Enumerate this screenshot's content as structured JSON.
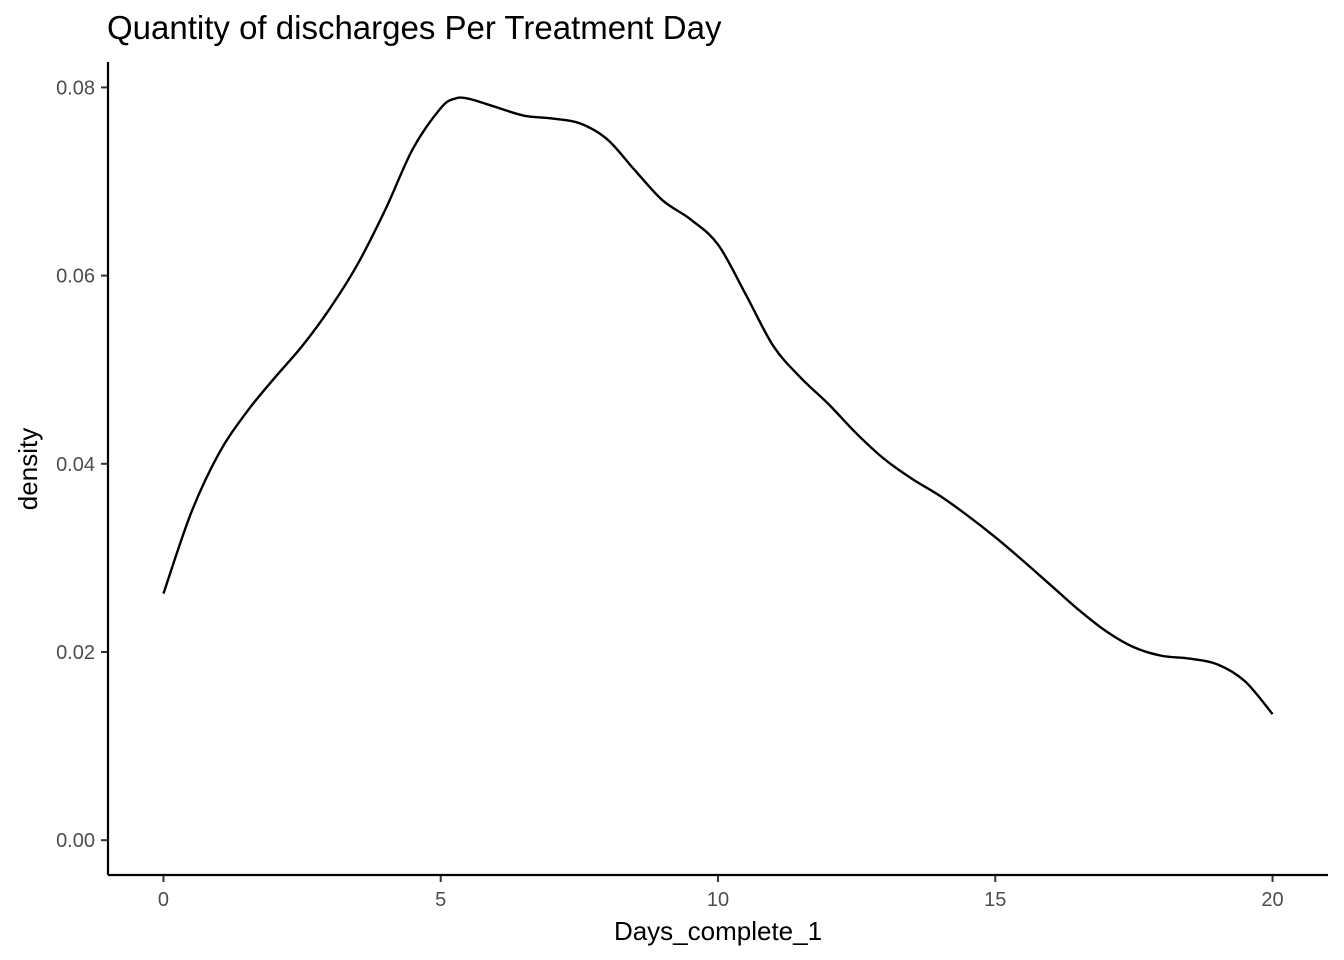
{
  "chart_data": {
    "type": "line",
    "title": "Quantity of discharges Per Treatment Day",
    "xlabel": "Days_complete_1",
    "ylabel": "density",
    "xlim": [
      -1,
      21
    ],
    "ylim": [
      -0.0037,
      0.0827
    ],
    "x_ticks": [
      0,
      5,
      10,
      15,
      20
    ],
    "x_tick_labels": [
      "0",
      "5",
      "10",
      "15",
      "20"
    ],
    "y_ticks": [
      0.0,
      0.02,
      0.04,
      0.06,
      0.08
    ],
    "y_tick_labels": [
      "0.00",
      "0.02",
      "0.04",
      "0.06",
      "0.08"
    ],
    "grid": false,
    "series": [
      {
        "x": [
          0,
          0.5,
          1,
          1.5,
          2,
          2.5,
          3,
          3.5,
          4,
          4.5,
          5,
          5.25,
          5.5,
          6,
          6.5,
          7,
          7.5,
          8,
          8.5,
          9,
          9.5,
          10,
          10.5,
          11,
          11.5,
          12,
          12.5,
          13,
          13.5,
          14,
          14.5,
          15,
          15.5,
          16,
          16.5,
          17,
          17.5,
          18,
          18.5,
          19,
          19.5,
          20
        ],
        "y": [
          0.0262,
          0.0348,
          0.0411,
          0.0455,
          0.0491,
          0.0525,
          0.0565,
          0.0612,
          0.067,
          0.0735,
          0.0778,
          0.0788,
          0.0788,
          0.0779,
          0.077,
          0.0767,
          0.0762,
          0.0745,
          0.0712,
          0.068,
          0.066,
          0.0633,
          0.058,
          0.0525,
          0.0491,
          0.0463,
          0.0432,
          0.0405,
          0.0384,
          0.0366,
          0.0345,
          0.0322,
          0.0297,
          0.0271,
          0.0245,
          0.0222,
          0.0205,
          0.0196,
          0.0193,
          0.0187,
          0.0169,
          0.0134
        ]
      }
    ]
  }
}
